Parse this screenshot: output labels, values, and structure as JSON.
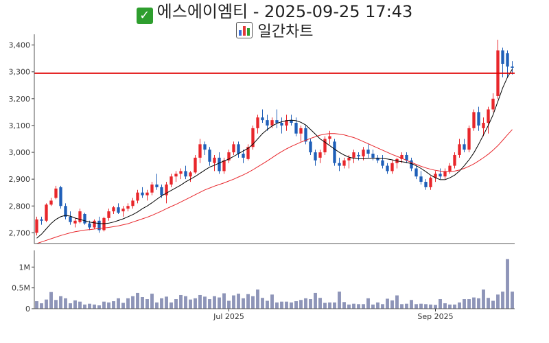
{
  "header": {
    "title": "에스에이엠티 - 2025-09-25 17:43",
    "subtitle": "일간차트"
  },
  "colors": {
    "up": "#e8262b",
    "down": "#1f5fb8",
    "ma_short": "#000000",
    "ma_long": "#e8262b",
    "ref_line": "#e00000",
    "volume": "#8e95b8"
  },
  "chart_data": {
    "type": "candlestick",
    "price_axis": {
      "ylim": [
        2660,
        3440
      ],
      "ticks": [
        "2,700",
        "2,800",
        "2,900",
        "3,000",
        "3,100",
        "3,200",
        "3,300",
        "3,400"
      ],
      "tick_values": [
        2700,
        2800,
        2900,
        3000,
        3100,
        3200,
        3300,
        3400
      ]
    },
    "volume_axis": {
      "ylim": [
        0,
        1400000
      ],
      "ticks": [
        "0",
        "0.5M",
        "1M"
      ],
      "tick_values": [
        0,
        500000,
        1000000
      ]
    },
    "x_ticks": [
      {
        "label": "Jul 2025",
        "index": 40
      },
      {
        "label": "Sep 2025",
        "index": 83
      }
    ],
    "reference_line": 3295,
    "ohlc": [
      [
        2700,
        2760,
        2690,
        2750
      ],
      [
        2750,
        2760,
        2730,
        2745
      ],
      [
        2745,
        2810,
        2740,
        2805
      ],
      [
        2805,
        2830,
        2800,
        2820
      ],
      [
        2830,
        2875,
        2825,
        2865
      ],
      [
        2870,
        2875,
        2790,
        2800
      ],
      [
        2800,
        2810,
        2750,
        2760
      ],
      [
        2760,
        2780,
        2730,
        2740
      ],
      [
        2735,
        2755,
        2720,
        2745
      ],
      [
        2740,
        2790,
        2735,
        2780
      ],
      [
        2770,
        2775,
        2730,
        2735
      ],
      [
        2735,
        2745,
        2710,
        2720
      ],
      [
        2720,
        2750,
        2715,
        2745
      ],
      [
        2745,
        2760,
        2700,
        2710
      ],
      [
        2710,
        2760,
        2705,
        2755
      ],
      [
        2755,
        2790,
        2745,
        2780
      ],
      [
        2780,
        2800,
        2770,
        2795
      ],
      [
        2795,
        2810,
        2770,
        2775
      ],
      [
        2780,
        2800,
        2760,
        2790
      ],
      [
        2790,
        2810,
        2780,
        2800
      ],
      [
        2800,
        2830,
        2790,
        2820
      ],
      [
        2820,
        2860,
        2810,
        2850
      ],
      [
        2850,
        2870,
        2830,
        2840
      ],
      [
        2840,
        2860,
        2820,
        2850
      ],
      [
        2850,
        2890,
        2840,
        2880
      ],
      [
        2880,
        2920,
        2860,
        2870
      ],
      [
        2870,
        2880,
        2830,
        2840
      ],
      [
        2840,
        2890,
        2810,
        2880
      ],
      [
        2880,
        2920,
        2870,
        2910
      ],
      [
        2910,
        2930,
        2890,
        2920
      ],
      [
        2920,
        2940,
        2900,
        2930
      ],
      [
        2930,
        2950,
        2900,
        2910
      ],
      [
        2910,
        2930,
        2890,
        2925
      ],
      [
        2925,
        2990,
        2920,
        2980
      ],
      [
        2980,
        3050,
        2960,
        3030
      ],
      [
        3030,
        3040,
        2990,
        3010
      ],
      [
        3010,
        3020,
        2950,
        2965
      ],
      [
        2960,
        2990,
        2930,
        2980
      ],
      [
        2980,
        3000,
        2920,
        2930
      ],
      [
        2930,
        2980,
        2920,
        2970
      ],
      [
        2970,
        3010,
        2960,
        3000
      ],
      [
        3000,
        3040,
        2990,
        3030
      ],
      [
        3030,
        3040,
        2980,
        2995
      ],
      [
        2995,
        3010,
        2960,
        2980
      ],
      [
        2975,
        3030,
        2970,
        3020
      ],
      [
        3020,
        3100,
        3010,
        3090
      ],
      [
        3090,
        3140,
        3070,
        3130
      ],
      [
        3130,
        3160,
        3110,
        3120
      ],
      [
        3120,
        3140,
        3080,
        3100
      ],
      [
        3100,
        3130,
        3090,
        3120
      ],
      [
        3120,
        3160,
        3090,
        3110
      ],
      [
        3110,
        3130,
        3070,
        3100
      ],
      [
        3100,
        3140,
        3080,
        3120
      ],
      [
        3120,
        3140,
        3100,
        3110
      ],
      [
        3110,
        3130,
        3060,
        3070
      ],
      [
        3070,
        3100,
        3040,
        3090
      ],
      [
        3090,
        3100,
        3030,
        3040
      ],
      [
        3040,
        3050,
        2990,
        3000
      ],
      [
        3000,
        3010,
        2950,
        2970
      ],
      [
        2980,
        3010,
        2960,
        3000
      ],
      [
        3000,
        3060,
        2990,
        3050
      ],
      [
        3050,
        3080,
        3030,
        3060
      ],
      [
        3040,
        3050,
        2950,
        2960
      ],
      [
        2960,
        2980,
        2930,
        2950
      ],
      [
        2950,
        2980,
        2940,
        2970
      ],
      [
        2970,
        2990,
        2940,
        2980
      ],
      [
        2980,
        3010,
        2960,
        3000
      ],
      [
        2990,
        3000,
        2970,
        2985
      ],
      [
        2985,
        3020,
        2970,
        3010
      ],
      [
        3010,
        3030,
        2980,
        2995
      ],
      [
        2995,
        3010,
        2970,
        2980
      ],
      [
        2980,
        2990,
        2960,
        2970
      ],
      [
        2970,
        2990,
        2940,
        2950
      ],
      [
        2950,
        2960,
        2920,
        2930
      ],
      [
        2930,
        2970,
        2920,
        2960
      ],
      [
        2960,
        2980,
        2940,
        2975
      ],
      [
        2975,
        3000,
        2960,
        2990
      ],
      [
        2990,
        3000,
        2960,
        2970
      ],
      [
        2970,
        2980,
        2930,
        2940
      ],
      [
        2940,
        2950,
        2900,
        2910
      ],
      [
        2910,
        2930,
        2880,
        2890
      ],
      [
        2890,
        2900,
        2860,
        2870
      ],
      [
        2870,
        2910,
        2860,
        2905
      ],
      [
        2905,
        2930,
        2890,
        2920
      ],
      [
        2920,
        2940,
        2900,
        2910
      ],
      [
        2910,
        2940,
        2900,
        2930
      ],
      [
        2930,
        2960,
        2920,
        2950
      ],
      [
        2950,
        3000,
        2940,
        2990
      ],
      [
        2990,
        3050,
        2980,
        3030
      ],
      [
        3030,
        3050,
        3000,
        3010
      ],
      [
        3010,
        3100,
        3000,
        3090
      ],
      [
        3090,
        3160,
        3080,
        3150
      ],
      [
        3150,
        3170,
        3080,
        3100
      ],
      [
        3090,
        3130,
        3060,
        3110
      ],
      [
        3110,
        3170,
        3070,
        3160
      ],
      [
        3160,
        3220,
        3150,
        3200
      ],
      [
        3210,
        3420,
        3200,
        3380
      ],
      [
        3380,
        3390,
        3280,
        3330
      ],
      [
        3370,
        3380,
        3280,
        3320
      ],
      [
        3320,
        3340,
        3290,
        3315
      ]
    ],
    "ma_short": [
      2680,
      2695,
      2715,
      2735,
      2750,
      2760,
      2765,
      2762,
      2755,
      2750,
      2745,
      2740,
      2737,
      2735,
      2734,
      2736,
      2740,
      2746,
      2752,
      2760,
      2768,
      2778,
      2790,
      2800,
      2812,
      2825,
      2838,
      2848,
      2858,
      2868,
      2878,
      2890,
      2900,
      2910,
      2922,
      2934,
      2945,
      2952,
      2960,
      2968,
      2975,
      2985,
      2995,
      3005,
      3015,
      3030,
      3050,
      3070,
      3085,
      3098,
      3108,
      3114,
      3118,
      3120,
      3118,
      3112,
      3102,
      3085,
      3068,
      3050,
      3038,
      3025,
      3012,
      3000,
      2990,
      2982,
      2978,
      2976,
      2976,
      2977,
      2978,
      2978,
      2977,
      2975,
      2972,
      2968,
      2965,
      2962,
      2958,
      2950,
      2940,
      2928,
      2915,
      2905,
      2898,
      2898,
      2905,
      2915,
      2930,
      2950,
      2972,
      2998,
      3030,
      3065,
      3100,
      3140,
      3190,
      3240,
      3280,
      3310
    ],
    "ma_long": [
      2660,
      2666,
      2672,
      2678,
      2684,
      2690,
      2695,
      2700,
      2704,
      2707,
      2710,
      2712,
      2714,
      2716,
      2718,
      2720,
      2723,
      2726,
      2730,
      2734,
      2740,
      2746,
      2752,
      2758,
      2765,
      2773,
      2781,
      2790,
      2798,
      2806,
      2815,
      2824,
      2833,
      2842,
      2851,
      2860,
      2867,
      2874,
      2880,
      2886,
      2893,
      2900,
      2908,
      2916,
      2925,
      2935,
      2946,
      2957,
      2968,
      2980,
      2992,
      3003,
      3013,
      3022,
      3030,
      3038,
      3045,
      3052,
      3058,
      3064,
      3068,
      3070,
      3070,
      3068,
      3065,
      3060,
      3055,
      3048,
      3040,
      3032,
      3024,
      3016,
      3008,
      3000,
      2992,
      2985,
      2978,
      2970,
      2962,
      2955,
      2948,
      2942,
      2937,
      2933,
      2930,
      2928,
      2928,
      2930,
      2934,
      2940,
      2948,
      2957,
      2968,
      2980,
      2993,
      3008,
      3025,
      3045,
      3065,
      3085
    ],
    "volume": [
      180000,
      130000,
      220000,
      400000,
      210000,
      300000,
      250000,
      130000,
      200000,
      170000,
      100000,
      120000,
      100000,
      80000,
      170000,
      150000,
      180000,
      250000,
      140000,
      250000,
      300000,
      380000,
      280000,
      230000,
      360000,
      150000,
      250000,
      290000,
      150000,
      230000,
      330000,
      300000,
      220000,
      250000,
      330000,
      290000,
      230000,
      300000,
      270000,
      370000,
      190000,
      320000,
      360000,
      250000,
      350000,
      300000,
      460000,
      260000,
      190000,
      340000,
      150000,
      170000,
      170000,
      150000,
      180000,
      210000,
      250000,
      230000,
      380000,
      260000,
      140000,
      150000,
      150000,
      410000,
      160000,
      100000,
      120000,
      110000,
      110000,
      250000,
      100000,
      150000,
      110000,
      240000,
      200000,
      320000,
      110000,
      120000,
      210000,
      110000,
      120000,
      110000,
      100000,
      90000,
      230000,
      130000,
      100000,
      100000,
      150000,
      230000,
      230000,
      270000,
      250000,
      460000,
      260000,
      190000,
      340000,
      410000,
      1190000,
      410000
    ]
  }
}
